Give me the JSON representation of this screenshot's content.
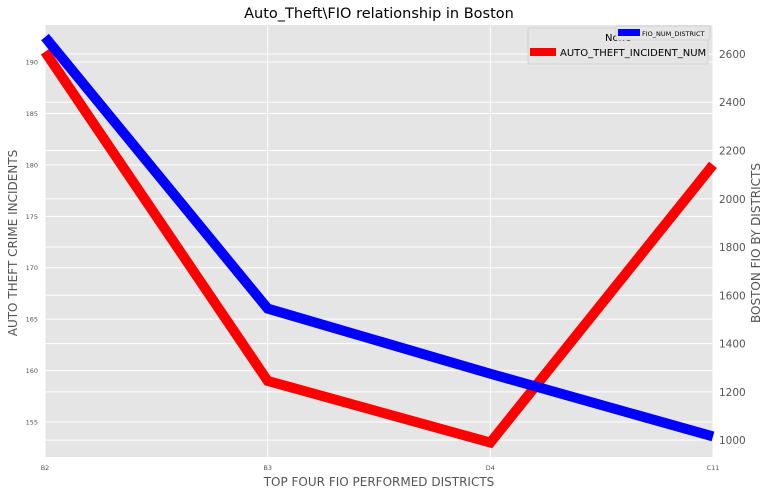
{
  "chart_data": {
    "type": "line",
    "title": "Auto_Theft\\FIO relationship in Boston",
    "xlabel": "TOP FOUR FIO PERFORMED DISTRICTS",
    "ylabel_left": "AUTO THEFT CRIME INCIDENTS",
    "ylabel_right": "BOSTON FIO BY DISTRICTS",
    "categories": [
      "B2",
      "B3",
      "D4",
      "C11"
    ],
    "y_left_ticks": [
      155,
      160,
      165,
      170,
      175,
      180,
      185,
      190
    ],
    "y_left_lim": [
      151.6,
      193.6
    ],
    "y_right_ticks": [
      1000,
      1200,
      1400,
      1600,
      1800,
      2000,
      2200,
      2400,
      2600
    ],
    "y_right_lim": [
      930,
      2720
    ],
    "grid": true,
    "series": [
      {
        "name": "AUTO_THEFT_INCIDENT_NUM",
        "axis": "left",
        "color": "#ff0000",
        "values": [
          191,
          159,
          153,
          180
        ]
      },
      {
        "name": "FIO_NUM_DISTRICT",
        "axis": "right",
        "color": "#0000ff",
        "values": [
          2670,
          1545,
          1275,
          1015
        ]
      }
    ],
    "legends": [
      {
        "placement": "upper-right",
        "title": "None",
        "entries": [
          "AUTO_THEFT_INCIDENT_NUM"
        ]
      },
      {
        "placement": "upper-right",
        "entries": [
          "FIO_NUM_DISTRICT"
        ]
      }
    ]
  }
}
